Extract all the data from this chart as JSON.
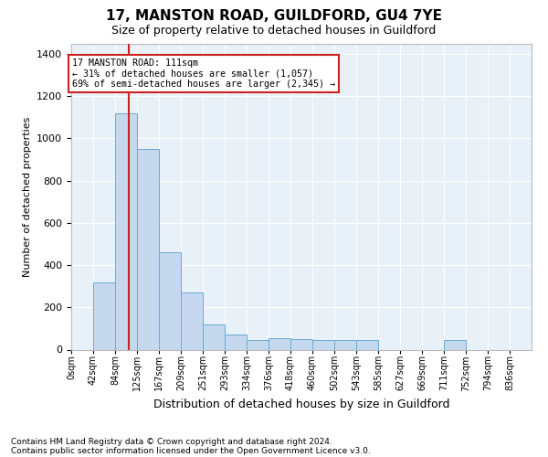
{
  "title": "17, MANSTON ROAD, GUILDFORD, GU4 7YE",
  "subtitle": "Size of property relative to detached houses in Guildford",
  "xlabel": "Distribution of detached houses by size in Guildford",
  "ylabel": "Number of detached properties",
  "footnote1": "Contains HM Land Registry data © Crown copyright and database right 2024.",
  "footnote2": "Contains public sector information licensed under the Open Government Licence v3.0.",
  "annotation_title": "17 MANSTON ROAD: 111sqm",
  "annotation_line1": "← 31% of detached houses are smaller (1,057)",
  "annotation_line2": "69% of semi-detached houses are larger (2,345) →",
  "bar_labels": [
    "0sqm",
    "42sqm",
    "84sqm",
    "125sqm",
    "167sqm",
    "209sqm",
    "251sqm",
    "293sqm",
    "334sqm",
    "376sqm",
    "418sqm",
    "460sqm",
    "502sqm",
    "543sqm",
    "585sqm",
    "627sqm",
    "669sqm",
    "711sqm",
    "752sqm",
    "794sqm",
    "836sqm"
  ],
  "bar_values": [
    0,
    320,
    1120,
    950,
    460,
    270,
    120,
    70,
    45,
    55,
    50,
    45,
    45,
    45,
    0,
    0,
    0,
    45,
    0,
    0,
    0
  ],
  "bar_color": "#c5d8ee",
  "bar_edge_color": "#6aaad4",
  "property_line_bin": 2.64,
  "ylim_max": 1450,
  "yticks": [
    0,
    200,
    400,
    600,
    800,
    1000,
    1200,
    1400
  ],
  "plot_bg": "#e8f0f8",
  "grid_color": "#ffffff",
  "annotation_box_bg": "#ffffff",
  "annotation_box_edge": "#cc2222",
  "property_line_color": "#cc2222",
  "fig_bg": "#ffffff"
}
